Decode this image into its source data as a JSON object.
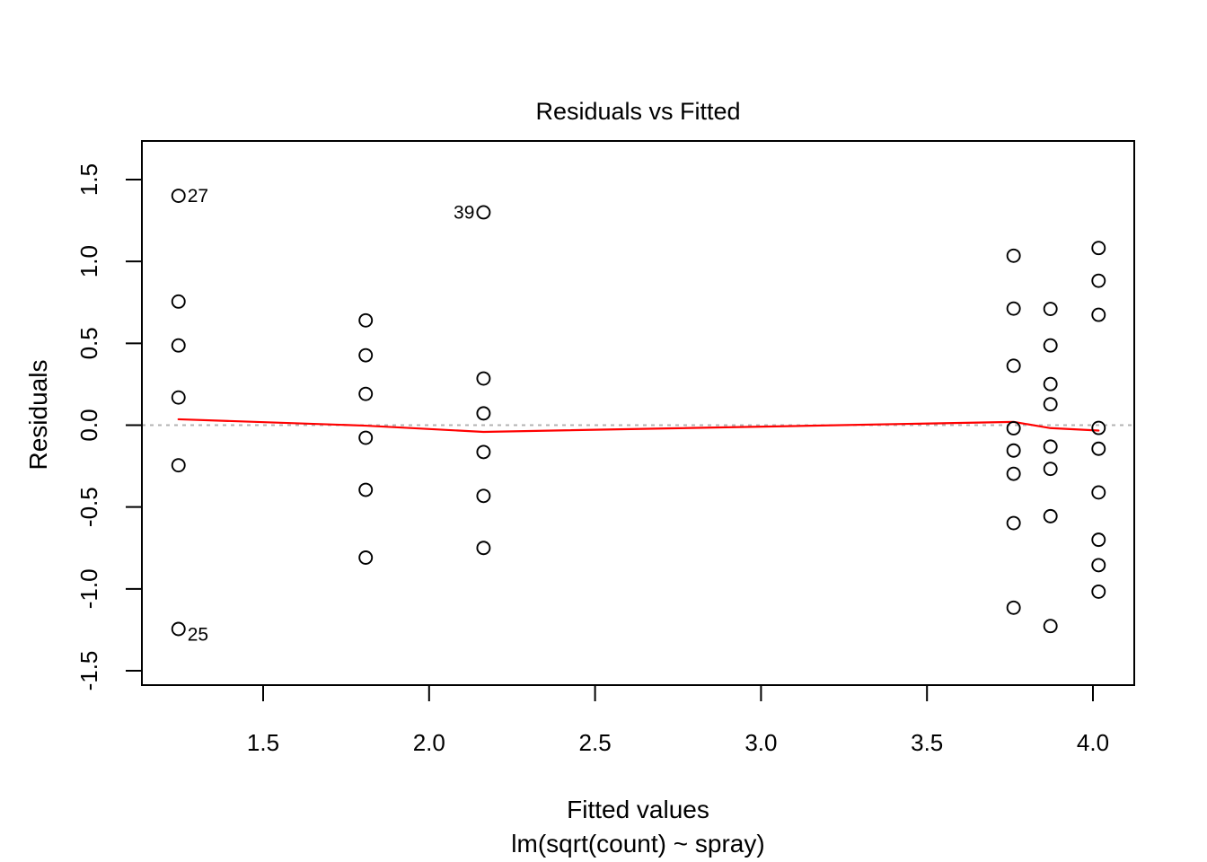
{
  "chart_data": {
    "type": "scatter",
    "title": "Residuals vs Fitted",
    "xlabel": "Fitted values",
    "xlabel2": "lm(sqrt(count) ~ spray)",
    "ylabel": "Residuals",
    "x_ticks": {
      "values": [
        1.5,
        2.0,
        2.5,
        3.0,
        3.5,
        4.0
      ],
      "labels": [
        "1.5",
        "2.0",
        "2.5",
        "3.0",
        "3.5",
        "4.0"
      ]
    },
    "y_ticks": {
      "values": [
        -1.5,
        -1.0,
        -0.5,
        0.0,
        0.5,
        1.0,
        1.5
      ],
      "labels": [
        "-1.5",
        "-1.0",
        "-0.5",
        "0.0",
        "0.5",
        "1.0",
        "1.5"
      ]
    },
    "xlim": [
      1.13,
      4.12
    ],
    "ylim": [
      -1.59,
      1.73
    ],
    "grid": false,
    "point_style": {
      "shape": "open-circle",
      "color": "#000000"
    },
    "zero_line": {
      "y": 0,
      "style": "dotted",
      "color": "#b3b3b3"
    },
    "groups": [
      {
        "fitted": 1.245,
        "residuals": [
          1.401,
          0.755,
          0.487,
          0.169,
          -0.245,
          -1.245
        ]
      },
      {
        "fitted": 1.809,
        "residuals": [
          0.64,
          0.427,
          0.191,
          -0.077,
          -0.395,
          -0.809
        ]
      },
      {
        "fitted": 2.164,
        "residuals": [
          1.3,
          0.285,
          0.072,
          -0.164,
          -0.432,
          -0.75
        ]
      },
      {
        "fitted": 3.761,
        "residuals": [
          1.035,
          0.712,
          0.363,
          -0.019,
          -0.155,
          -0.297,
          -0.598,
          -1.115
        ]
      },
      {
        "fitted": 3.872,
        "residuals": [
          0.71,
          0.487,
          0.251,
          0.128,
          -0.131,
          -0.267,
          -0.556,
          -1.227
        ]
      },
      {
        "fitted": 4.017,
        "residuals": [
          1.082,
          0.882,
          0.674,
          -0.017,
          -0.144,
          -0.411,
          -0.7,
          -0.855,
          -1.017
        ]
      }
    ],
    "labeled_points": [
      {
        "label": "27",
        "fitted": 1.245,
        "residual": 1.401,
        "side": "right",
        "dy": 0
      },
      {
        "label": "39",
        "fitted": 2.164,
        "residual": 1.3,
        "side": "left",
        "dy": 0
      },
      {
        "label": "25",
        "fitted": 1.245,
        "residual": -1.245,
        "side": "right",
        "dy": 6
      }
    ],
    "smoother": {
      "name": "lowess",
      "color": "#ff0000",
      "points": [
        [
          1.245,
          0.036
        ],
        [
          1.809,
          -0.003
        ],
        [
          2.164,
          -0.041
        ],
        [
          3.761,
          0.02
        ],
        [
          3.872,
          -0.018
        ],
        [
          4.017,
          -0.033
        ]
      ]
    }
  }
}
